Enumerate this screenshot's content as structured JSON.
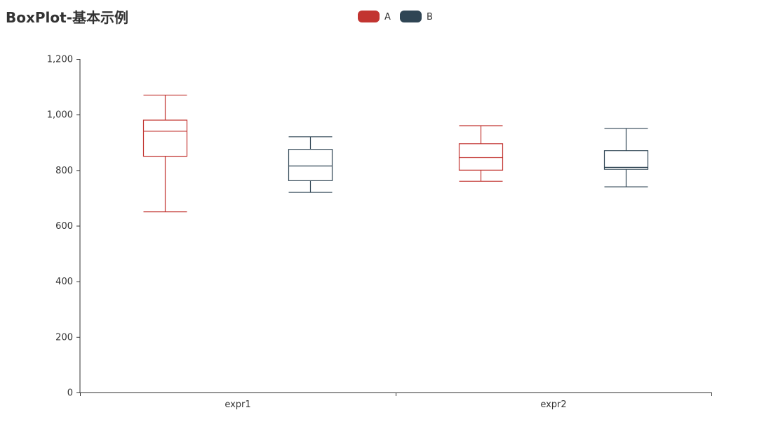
{
  "chart_data": {
    "type": "boxplot",
    "title": "BoxPlot-基本示例",
    "categories": [
      "expr1",
      "expr2"
    ],
    "ylim": [
      0,
      1200
    ],
    "yticks": [
      0,
      200,
      400,
      600,
      800,
      1000,
      1200
    ],
    "ytick_labels": [
      "0",
      "200",
      "400",
      "600",
      "800",
      "1,000",
      "1,200"
    ],
    "legend_position": "top-center",
    "grid": false,
    "series": [
      {
        "name": "A",
        "color": "#c23531",
        "boxes": [
          {
            "min": 650,
            "q1": 850,
            "median": 940,
            "q3": 980,
            "max": 1070
          },
          {
            "min": 760,
            "q1": 800,
            "median": 845,
            "q3": 895,
            "max": 960
          }
        ]
      },
      {
        "name": "B",
        "color": "#2f4554",
        "boxes": [
          {
            "min": 720,
            "q1": 762,
            "median": 815,
            "q3": 875,
            "max": 920
          },
          {
            "min": 740,
            "q1": 803,
            "median": 810,
            "q3": 870,
            "max": 950
          }
        ]
      }
    ]
  }
}
